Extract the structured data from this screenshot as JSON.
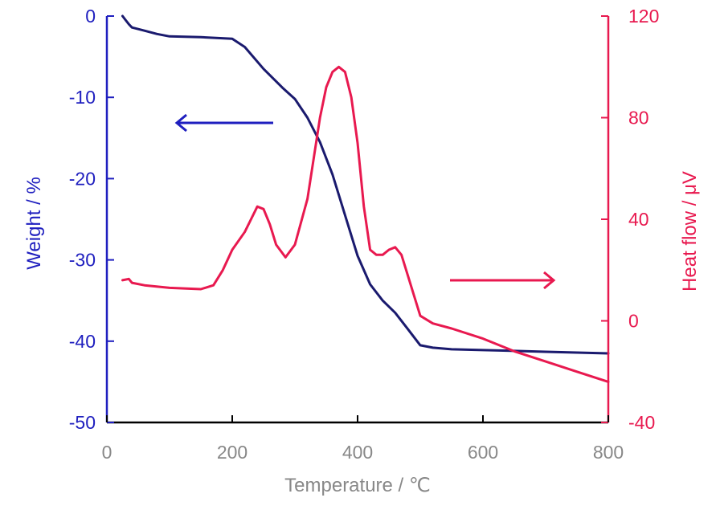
{
  "chart_data": {
    "type": "line",
    "title": "",
    "xlabel": "Temperature / ℃",
    "ylabel_left": "Weight / %",
    "ylabel_right": "Heat flow / μV",
    "xlim": [
      0,
      800
    ],
    "ylim_left": [
      -50,
      0
    ],
    "ylim_right": [
      -40,
      120
    ],
    "xticks": [
      "0",
      "200",
      "400",
      "600",
      "800"
    ],
    "yticks_left": [
      "0",
      "-10",
      "-20",
      "-30",
      "-40",
      "-50"
    ],
    "yticks_right": [
      "120",
      "80",
      "40",
      "0",
      "-40"
    ],
    "grid": false,
    "colors": {
      "weight": "#1a1a6e",
      "heat_flow": "#e8194f",
      "left_axis": "#1f1fbf",
      "right_axis": "#e8194f",
      "x_axis": "#888888"
    },
    "series": [
      {
        "axis": "left",
        "x": [
          25,
          30,
          35,
          40,
          60,
          80,
          100,
          150,
          200,
          220,
          250,
          280,
          300,
          320,
          340,
          360,
          380,
          400,
          420,
          440,
          460,
          480,
          500,
          520,
          550,
          600,
          650,
          700,
          750,
          800
        ],
        "y": [
          0,
          -0.5,
          -1,
          -1.4,
          -1.8,
          -2.2,
          -2.5,
          -2.6,
          -2.8,
          -3.8,
          -6.5,
          -8.8,
          -10.2,
          -12.5,
          -15.5,
          -19.5,
          -24.5,
          -29.5,
          -33,
          -35,
          -36.5,
          -38.5,
          -40.5,
          -40.8,
          -41,
          -41.1,
          -41.2,
          -41.3,
          -41.4,
          -41.5
        ]
      },
      {
        "axis": "right",
        "x": [
          25,
          35,
          40,
          60,
          100,
          150,
          170,
          185,
          200,
          220,
          230,
          240,
          250,
          260,
          270,
          285,
          300,
          320,
          340,
          350,
          360,
          370,
          380,
          390,
          400,
          410,
          420,
          430,
          440,
          450,
          460,
          470,
          480,
          490,
          500,
          520,
          550,
          600,
          650,
          700,
          750,
          800
        ],
        "y": [
          16,
          16.5,
          15,
          14,
          13,
          12.5,
          14,
          20,
          28,
          35,
          40,
          45,
          44,
          38,
          30,
          25,
          30,
          48,
          80,
          92,
          98,
          100,
          98,
          88,
          70,
          45,
          28,
          26,
          26,
          28,
          29,
          26,
          18,
          10,
          2,
          -1,
          -3,
          -7,
          -12,
          -16,
          -20,
          -24
        ]
      }
    ]
  }
}
